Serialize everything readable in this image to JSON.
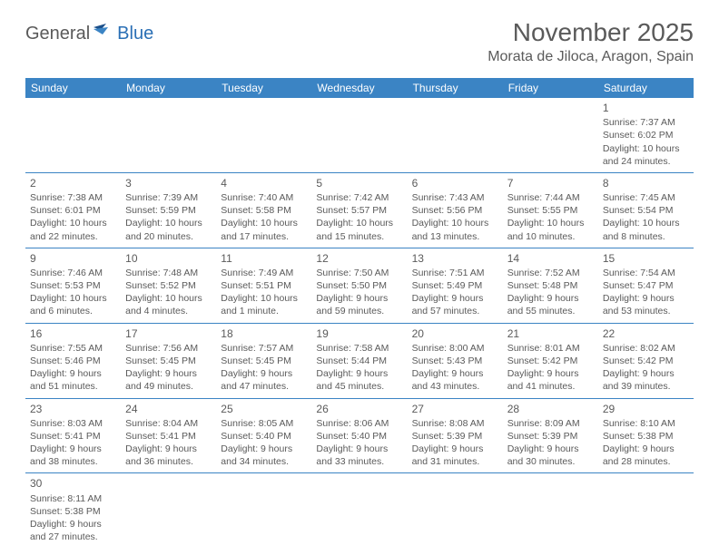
{
  "logo": {
    "part1": "General",
    "part2": "Blue"
  },
  "title": "November 2025",
  "location": "Morata de Jiloca, Aragon, Spain",
  "colors": {
    "header_bg": "#3b84c4",
    "header_fg": "#ffffff",
    "cell_border": "#3b84c4",
    "text": "#5a5a5a",
    "logo_gray": "#5a5a5a",
    "logo_blue": "#2a6fb5",
    "background": "#ffffff"
  },
  "day_headers": [
    "Sunday",
    "Monday",
    "Tuesday",
    "Wednesday",
    "Thursday",
    "Friday",
    "Saturday"
  ],
  "weeks": [
    [
      null,
      null,
      null,
      null,
      null,
      null,
      {
        "n": "1",
        "sr": "Sunrise: 7:37 AM",
        "ss": "Sunset: 6:02 PM",
        "dl": "Daylight: 10 hours and 24 minutes."
      }
    ],
    [
      {
        "n": "2",
        "sr": "Sunrise: 7:38 AM",
        "ss": "Sunset: 6:01 PM",
        "dl": "Daylight: 10 hours and 22 minutes."
      },
      {
        "n": "3",
        "sr": "Sunrise: 7:39 AM",
        "ss": "Sunset: 5:59 PM",
        "dl": "Daylight: 10 hours and 20 minutes."
      },
      {
        "n": "4",
        "sr": "Sunrise: 7:40 AM",
        "ss": "Sunset: 5:58 PM",
        "dl": "Daylight: 10 hours and 17 minutes."
      },
      {
        "n": "5",
        "sr": "Sunrise: 7:42 AM",
        "ss": "Sunset: 5:57 PM",
        "dl": "Daylight: 10 hours and 15 minutes."
      },
      {
        "n": "6",
        "sr": "Sunrise: 7:43 AM",
        "ss": "Sunset: 5:56 PM",
        "dl": "Daylight: 10 hours and 13 minutes."
      },
      {
        "n": "7",
        "sr": "Sunrise: 7:44 AM",
        "ss": "Sunset: 5:55 PM",
        "dl": "Daylight: 10 hours and 10 minutes."
      },
      {
        "n": "8",
        "sr": "Sunrise: 7:45 AM",
        "ss": "Sunset: 5:54 PM",
        "dl": "Daylight: 10 hours and 8 minutes."
      }
    ],
    [
      {
        "n": "9",
        "sr": "Sunrise: 7:46 AM",
        "ss": "Sunset: 5:53 PM",
        "dl": "Daylight: 10 hours and 6 minutes."
      },
      {
        "n": "10",
        "sr": "Sunrise: 7:48 AM",
        "ss": "Sunset: 5:52 PM",
        "dl": "Daylight: 10 hours and 4 minutes."
      },
      {
        "n": "11",
        "sr": "Sunrise: 7:49 AM",
        "ss": "Sunset: 5:51 PM",
        "dl": "Daylight: 10 hours and 1 minute."
      },
      {
        "n": "12",
        "sr": "Sunrise: 7:50 AM",
        "ss": "Sunset: 5:50 PM",
        "dl": "Daylight: 9 hours and 59 minutes."
      },
      {
        "n": "13",
        "sr": "Sunrise: 7:51 AM",
        "ss": "Sunset: 5:49 PM",
        "dl": "Daylight: 9 hours and 57 minutes."
      },
      {
        "n": "14",
        "sr": "Sunrise: 7:52 AM",
        "ss": "Sunset: 5:48 PM",
        "dl": "Daylight: 9 hours and 55 minutes."
      },
      {
        "n": "15",
        "sr": "Sunrise: 7:54 AM",
        "ss": "Sunset: 5:47 PM",
        "dl": "Daylight: 9 hours and 53 minutes."
      }
    ],
    [
      {
        "n": "16",
        "sr": "Sunrise: 7:55 AM",
        "ss": "Sunset: 5:46 PM",
        "dl": "Daylight: 9 hours and 51 minutes."
      },
      {
        "n": "17",
        "sr": "Sunrise: 7:56 AM",
        "ss": "Sunset: 5:45 PM",
        "dl": "Daylight: 9 hours and 49 minutes."
      },
      {
        "n": "18",
        "sr": "Sunrise: 7:57 AM",
        "ss": "Sunset: 5:45 PM",
        "dl": "Daylight: 9 hours and 47 minutes."
      },
      {
        "n": "19",
        "sr": "Sunrise: 7:58 AM",
        "ss": "Sunset: 5:44 PM",
        "dl": "Daylight: 9 hours and 45 minutes."
      },
      {
        "n": "20",
        "sr": "Sunrise: 8:00 AM",
        "ss": "Sunset: 5:43 PM",
        "dl": "Daylight: 9 hours and 43 minutes."
      },
      {
        "n": "21",
        "sr": "Sunrise: 8:01 AM",
        "ss": "Sunset: 5:42 PM",
        "dl": "Daylight: 9 hours and 41 minutes."
      },
      {
        "n": "22",
        "sr": "Sunrise: 8:02 AM",
        "ss": "Sunset: 5:42 PM",
        "dl": "Daylight: 9 hours and 39 minutes."
      }
    ],
    [
      {
        "n": "23",
        "sr": "Sunrise: 8:03 AM",
        "ss": "Sunset: 5:41 PM",
        "dl": "Daylight: 9 hours and 38 minutes."
      },
      {
        "n": "24",
        "sr": "Sunrise: 8:04 AM",
        "ss": "Sunset: 5:41 PM",
        "dl": "Daylight: 9 hours and 36 minutes."
      },
      {
        "n": "25",
        "sr": "Sunrise: 8:05 AM",
        "ss": "Sunset: 5:40 PM",
        "dl": "Daylight: 9 hours and 34 minutes."
      },
      {
        "n": "26",
        "sr": "Sunrise: 8:06 AM",
        "ss": "Sunset: 5:40 PM",
        "dl": "Daylight: 9 hours and 33 minutes."
      },
      {
        "n": "27",
        "sr": "Sunrise: 8:08 AM",
        "ss": "Sunset: 5:39 PM",
        "dl": "Daylight: 9 hours and 31 minutes."
      },
      {
        "n": "28",
        "sr": "Sunrise: 8:09 AM",
        "ss": "Sunset: 5:39 PM",
        "dl": "Daylight: 9 hours and 30 minutes."
      },
      {
        "n": "29",
        "sr": "Sunrise: 8:10 AM",
        "ss": "Sunset: 5:38 PM",
        "dl": "Daylight: 9 hours and 28 minutes."
      }
    ],
    [
      {
        "n": "30",
        "sr": "Sunrise: 8:11 AM",
        "ss": "Sunset: 5:38 PM",
        "dl": "Daylight: 9 hours and 27 minutes."
      },
      null,
      null,
      null,
      null,
      null,
      null
    ]
  ]
}
